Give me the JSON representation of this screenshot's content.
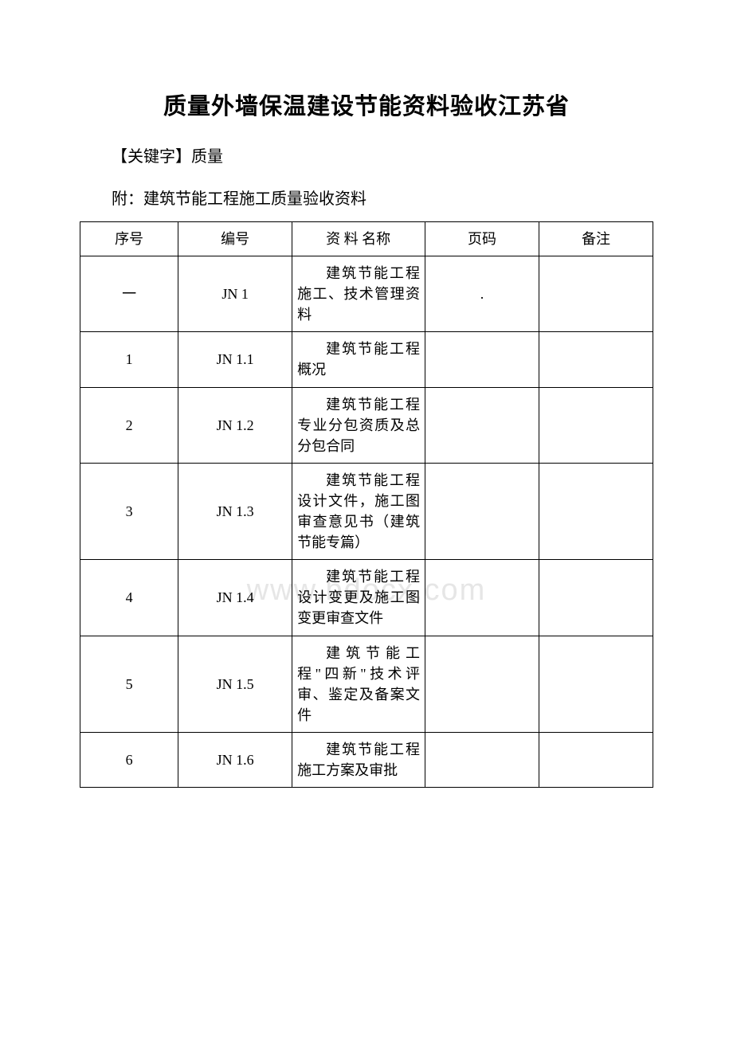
{
  "title": "质量外墙保温建设节能资料验收江苏省",
  "keyword_label": "【关键字】质量",
  "attachment_label": "附：建筑节能工程施工质量验收资料",
  "watermark_text": "www.bdocx.com",
  "table": {
    "headers": {
      "seq": "序号",
      "code": "编号",
      "name": "资 料 名称",
      "page": "页码",
      "note": "备注"
    },
    "rows": [
      {
        "seq": "一",
        "code": "JN 1",
        "name": "建筑节能工程施工、技术管理资料",
        "page": ".",
        "note": ""
      },
      {
        "seq": "1",
        "code": "JN 1.1",
        "name": "建筑节能工程概况",
        "page": "",
        "note": ""
      },
      {
        "seq": "2",
        "code": "JN 1.2",
        "name": "建筑节能工程专业分包资质及总分包合同",
        "page": "",
        "note": ""
      },
      {
        "seq": "3",
        "code": "JN 1.3",
        "name": "建筑节能工程设计文件，施工图审查意见书（建筑节能专篇）",
        "page": "",
        "note": ""
      },
      {
        "seq": "4",
        "code": "JN 1.4",
        "name": "建筑节能工程设计变更及施工图变更审查文件",
        "page": "",
        "note": ""
      },
      {
        "seq": "5",
        "code": "JN 1.5",
        "name": "建筑节能工程\"四新\"技术评审、鉴定及备案文件",
        "page": "",
        "note": ""
      },
      {
        "seq": "6",
        "code": "JN 1.6",
        "name": "建筑节能工程施工方案及审批",
        "page": "",
        "note": ""
      }
    ]
  }
}
